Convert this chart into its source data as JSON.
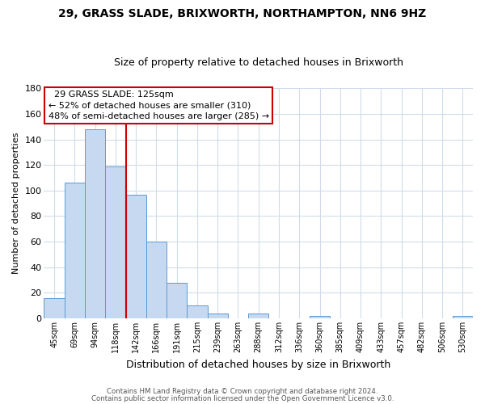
{
  "title": "29, GRASS SLADE, BRIXWORTH, NORTHAMPTON, NN6 9HZ",
  "subtitle": "Size of property relative to detached houses in Brixworth",
  "xlabel": "Distribution of detached houses by size in Brixworth",
  "ylabel": "Number of detached properties",
  "bar_labels": [
    "45sqm",
    "69sqm",
    "94sqm",
    "118sqm",
    "142sqm",
    "166sqm",
    "191sqm",
    "215sqm",
    "239sqm",
    "263sqm",
    "288sqm",
    "312sqm",
    "336sqm",
    "360sqm",
    "385sqm",
    "409sqm",
    "433sqm",
    "457sqm",
    "482sqm",
    "506sqm",
    "530sqm"
  ],
  "bar_values": [
    16,
    106,
    148,
    119,
    97,
    60,
    28,
    10,
    4,
    0,
    4,
    0,
    0,
    2,
    0,
    0,
    0,
    0,
    0,
    0,
    2
  ],
  "bar_color": "#c6d9f1",
  "bar_edge_color": "#5b9bd5",
  "vline_x": 3.5,
  "vline_color": "#cc0000",
  "annotation_title": "29 GRASS SLADE: 125sqm",
  "annotation_line1": "← 52% of detached houses are smaller (310)",
  "annotation_line2": "48% of semi-detached houses are larger (285) →",
  "annotation_box_color": "#ffffff",
  "annotation_box_edge": "#cc0000",
  "ylim": [
    0,
    180
  ],
  "yticks": [
    0,
    20,
    40,
    60,
    80,
    100,
    120,
    140,
    160,
    180
  ],
  "footer1": "Contains HM Land Registry data © Crown copyright and database right 2024.",
  "footer2": "Contains public sector information licensed under the Open Government Licence v3.0.",
  "background_color": "#ffffff",
  "grid_color": "#d0dcea",
  "title_fontsize": 10,
  "subtitle_fontsize": 9,
  "ylabel_fontsize": 8,
  "xlabel_fontsize": 9
}
